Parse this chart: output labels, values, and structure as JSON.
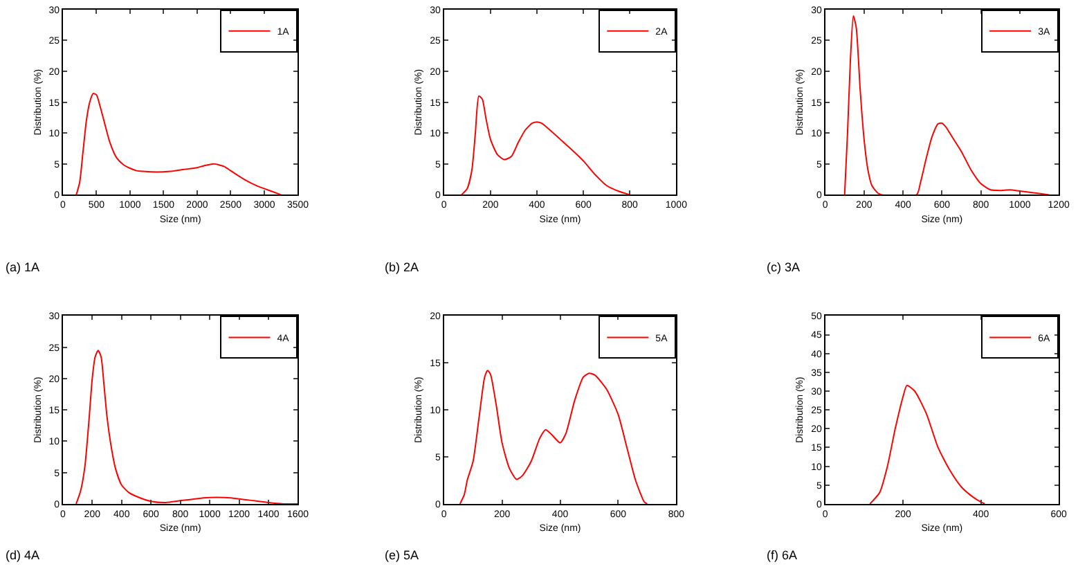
{
  "chart_data": [
    {
      "type": "line",
      "xlabel": "Size (nm)",
      "ylabel": "Distribution (%)",
      "annotations": [
        "(a) 1A"
      ],
      "xlim": [
        0,
        3500
      ],
      "xticks": [
        0,
        500,
        1000,
        1500,
        2000,
        2500,
        3000,
        3500
      ],
      "ylim": [
        0,
        30
      ],
      "yticks": [
        0,
        5,
        10,
        15,
        20,
        25,
        30
      ],
      "legend": "top right",
      "marker": "none",
      "line_style": "solid",
      "series": [
        {
          "name": "1A",
          "color": "#ff0000",
          "x": [
            200,
            250,
            300,
            350,
            400,
            450,
            500,
            550,
            600,
            700,
            800,
            900,
            1000,
            1100,
            1200,
            1400,
            1600,
            1800,
            2000,
            2100,
            2250,
            2400,
            2500,
            2700,
            2900,
            3100,
            3250
          ],
          "values": [
            0,
            2,
            7,
            12,
            15,
            16.4,
            16.2,
            14.5,
            12.5,
            8.5,
            6,
            4.9,
            4.3,
            3.9,
            3.8,
            3.7,
            3.8,
            4.1,
            4.4,
            4.7,
            5,
            4.6,
            3.9,
            2.5,
            1.4,
            0.6,
            0
          ]
        }
      ]
    },
    {
      "type": "line",
      "xlabel": "Size (nm)",
      "ylabel": "Distribution (%)",
      "annotations": [
        "(b) 2A"
      ],
      "xlim": [
        0,
        1000
      ],
      "xticks": [
        0,
        200,
        400,
        600,
        800,
        1000
      ],
      "ylim": [
        0,
        30
      ],
      "yticks": [
        0,
        5,
        10,
        15,
        20,
        25,
        30
      ],
      "legend": "top right",
      "marker": "none",
      "line_style": "solid",
      "series": [
        {
          "name": "2A",
          "color": "#ff0000",
          "x": [
            75,
            100,
            120,
            135,
            150,
            165,
            180,
            200,
            230,
            260,
            290,
            320,
            350,
            380,
            400,
            420,
            450,
            500,
            550,
            600,
            650,
            700,
            750,
            800
          ],
          "values": [
            0,
            1,
            4,
            10,
            16,
            15.5,
            12.5,
            9,
            6.5,
            5.7,
            6.2,
            8.5,
            10.5,
            11.6,
            11.8,
            11.6,
            10.7,
            9,
            7.3,
            5.5,
            3.3,
            1.5,
            0.6,
            0
          ]
        }
      ]
    },
    {
      "type": "line",
      "xlabel": "Size (nm)",
      "ylabel": "Distribution (%)",
      "annotations": [
        "(c) 3A"
      ],
      "xlim": [
        0,
        1200
      ],
      "xticks": [
        0,
        200,
        400,
        600,
        800,
        1000,
        1200
      ],
      "ylim": [
        0,
        30
      ],
      "yticks": [
        0,
        5,
        10,
        15,
        20,
        25,
        30
      ],
      "legend": "top right",
      "marker": "none",
      "line_style": "solid",
      "series": [
        {
          "name": "3A",
          "color": "#ff0000",
          "x": [
            100,
            115,
            130,
            145,
            160,
            180,
            200,
            220,
            240,
            270,
            290,
            470,
            490,
            520,
            550,
            580,
            600,
            620,
            650,
            700,
            750,
            800,
            850,
            900,
            950,
            1000,
            1100,
            1150
          ],
          "values": [
            0,
            10,
            22,
            29,
            27,
            17,
            9,
            4,
            1.5,
            0.3,
            0,
            0,
            2,
            6,
            9.5,
            11.5,
            11.6,
            11,
            9.5,
            7,
            4,
            1.8,
            0.8,
            0.7,
            0.8,
            0.6,
            0.2,
            0
          ]
        }
      ]
    },
    {
      "type": "line",
      "xlabel": "Size (nm)",
      "ylabel": "Distribution (%)",
      "annotations": [
        "(d) 4A"
      ],
      "xlim": [
        0,
        1600
      ],
      "xticks": [
        0,
        200,
        400,
        600,
        800,
        1000,
        1200,
        1400,
        1600
      ],
      "ylim": [
        0,
        30
      ],
      "yticks": [
        0,
        5,
        10,
        15,
        20,
        25,
        30
      ],
      "legend": "top right",
      "marker": "none",
      "line_style": "solid",
      "series": [
        {
          "name": "4A",
          "color": "#ff0000",
          "x": [
            90,
            120,
            150,
            180,
            200,
            220,
            240,
            260,
            280,
            300,
            330,
            360,
            400,
            450,
            500,
            600,
            700,
            800,
            900,
            1000,
            1100,
            1200,
            1300,
            1400,
            1500,
            1600
          ],
          "values": [
            0,
            2,
            6,
            14,
            20,
            23.5,
            24.5,
            23.5,
            19,
            14,
            9,
            5.5,
            3,
            1.8,
            1.2,
            0.4,
            0.2,
            0.5,
            0.8,
            1,
            1,
            0.8,
            0.5,
            0.2,
            0,
            0
          ]
        }
      ]
    },
    {
      "type": "line",
      "xlabel": "Size (nm)",
      "ylabel": "Distribution (%)",
      "annotations": [
        "(e) 5A"
      ],
      "xlim": [
        0,
        800
      ],
      "xticks": [
        0,
        200,
        400,
        600,
        800
      ],
      "ylim": [
        0,
        20
      ],
      "yticks": [
        0,
        5,
        10,
        15,
        20
      ],
      "legend": "top right",
      "marker": "none",
      "line_style": "solid",
      "series": [
        {
          "name": "5A",
          "color": "#ff0000",
          "x": [
            55,
            70,
            80,
            100,
            120,
            140,
            150,
            160,
            180,
            200,
            225,
            250,
            270,
            300,
            330,
            350,
            370,
            400,
            420,
            450,
            480,
            500,
            520,
            560,
            600,
            630,
            660,
            690,
            700
          ],
          "values": [
            0,
            1,
            2.5,
            4.5,
            9,
            13.5,
            14.2,
            13.8,
            10.5,
            6.5,
            3.8,
            2.6,
            3,
            4.5,
            7,
            7.9,
            7.4,
            6.5,
            7.5,
            11,
            13.5,
            13.9,
            13.7,
            12.2,
            9.5,
            6,
            2.5,
            0.2,
            0
          ]
        }
      ]
    },
    {
      "type": "line",
      "xlabel": "Size (nm)",
      "ylabel": "Distribution (%)",
      "annotations": [
        "(f) 6A"
      ],
      "xlim": [
        0,
        600
      ],
      "xticks": [
        0,
        200,
        400,
        600
      ],
      "ylim": [
        0,
        50
      ],
      "yticks": [
        0,
        5,
        10,
        15,
        20,
        25,
        30,
        35,
        40,
        45,
        50
      ],
      "legend": "top right",
      "marker": "none",
      "line_style": "solid",
      "series": [
        {
          "name": "6A",
          "color": "#ff0000",
          "x": [
            115,
            140,
            160,
            180,
            200,
            210,
            230,
            260,
            290,
            320,
            350,
            380,
            400,
            410
          ],
          "values": [
            0,
            3,
            10,
            20,
            28.5,
            31.5,
            30,
            24,
            15,
            9,
            4.5,
            1.8,
            0.5,
            0
          ]
        }
      ]
    }
  ]
}
